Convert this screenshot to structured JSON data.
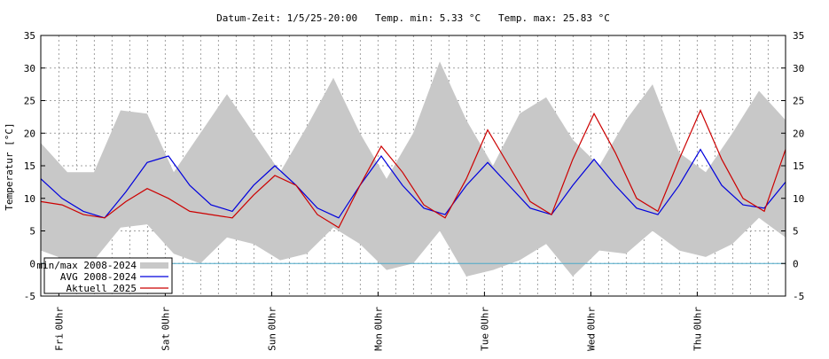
{
  "header": {
    "title": "Datum-Zeit: 1/5/25-20:00   Temp. min: 5.33 °C   Temp. max: 25.83 °C"
  },
  "chart_data": {
    "type": "line",
    "title": "Datum-Zeit: 1/5/25-20:00   Temp. min: 5.33 °C   Temp. max: 25.83 °C",
    "ylabel": "Temperatur [°C]",
    "xlabel": "",
    "xlim": [
      0,
      7
    ],
    "ylim": [
      -5,
      35
    ],
    "y_ticks": [
      -5,
      0,
      5,
      10,
      15,
      20,
      25,
      30,
      35
    ],
    "x_ticks": [
      {
        "x": 0.17,
        "time": "0Uhr",
        "day": "Fri"
      },
      {
        "x": 1.17,
        "time": "0Uhr",
        "day": "Sat"
      },
      {
        "x": 2.17,
        "time": "0Uhr",
        "day": "Sun"
      },
      {
        "x": 3.17,
        "time": "0Uhr",
        "day": "Mon"
      },
      {
        "x": 4.17,
        "time": "0Uhr",
        "day": "Tue"
      },
      {
        "x": 5.17,
        "time": "0Uhr",
        "day": "Wed"
      },
      {
        "x": 6.17,
        "time": "0Uhr",
        "day": "Thu"
      }
    ],
    "grid": true,
    "legend_position": "bottom-left",
    "zero_line_color": "#4aa8c8",
    "series": [
      {
        "name": "min/max 2008-2024",
        "kind": "band",
        "color": "#c8c8c8",
        "x": [
          0,
          0.25,
          0.5,
          0.75,
          1,
          1.25,
          1.5,
          1.75,
          2,
          2.25,
          2.5,
          2.75,
          3,
          3.25,
          3.5,
          3.75,
          4,
          4.25,
          4.5,
          4.75,
          5,
          5.25,
          5.5,
          5.75,
          6,
          6.25,
          6.5,
          6.75,
          7
        ],
        "upper": [
          18.5,
          14,
          14,
          23.5,
          23,
          14,
          20,
          26,
          20,
          14,
          21,
          28.5,
          20,
          13,
          20,
          31,
          22,
          15,
          23,
          25.5,
          19,
          15,
          22,
          27.5,
          17,
          14,
          20,
          26.5,
          22
        ],
        "lower": [
          2,
          0.5,
          0.5,
          5.5,
          6,
          1.5,
          0,
          4,
          3,
          0.5,
          1.5,
          5.5,
          3,
          -1,
          0,
          5,
          -2,
          -1,
          0.5,
          3,
          -2,
          2,
          1.5,
          5,
          2,
          1,
          3,
          7,
          4
        ]
      },
      {
        "name": "AVG 2008-2024",
        "kind": "line",
        "color": "#0000dd",
        "x": [
          0,
          0.2,
          0.4,
          0.6,
          0.8,
          1,
          1.2,
          1.4,
          1.6,
          1.8,
          2,
          2.2,
          2.4,
          2.6,
          2.8,
          3,
          3.2,
          3.4,
          3.6,
          3.8,
          4,
          4.2,
          4.4,
          4.6,
          4.8,
          5,
          5.2,
          5.4,
          5.6,
          5.8,
          6,
          6.2,
          6.4,
          6.6,
          6.8,
          7
        ],
        "y": [
          13,
          10,
          8,
          7,
          11,
          15.5,
          16.5,
          12,
          9,
          8,
          12,
          15,
          12,
          8.5,
          7,
          12,
          16.5,
          12,
          8.5,
          7.5,
          12,
          15.5,
          12,
          8.5,
          7.5,
          12,
          16,
          12,
          8.5,
          7.5,
          12,
          17.5,
          12,
          9,
          8.5,
          12.5
        ]
      },
      {
        "name": "Aktuell 2025",
        "kind": "line",
        "color": "#cc0000",
        "x": [
          0,
          0.2,
          0.4,
          0.6,
          0.8,
          1,
          1.2,
          1.4,
          1.6,
          1.8,
          2,
          2.2,
          2.4,
          2.6,
          2.8,
          3,
          3.2,
          3.4,
          3.6,
          3.8,
          4,
          4.2,
          4.4,
          4.6,
          4.8,
          5,
          5.2,
          5.4,
          5.6,
          5.8,
          6,
          6.2,
          6.4,
          6.6,
          6.8,
          7
        ],
        "y": [
          9.5,
          9,
          7.5,
          7,
          9.5,
          11.5,
          10,
          8,
          7.5,
          7,
          10.5,
          13.5,
          12,
          7.5,
          5.5,
          12,
          18,
          14,
          9,
          7,
          13,
          20.5,
          15,
          9.5,
          7.5,
          16,
          23,
          17,
          10,
          8,
          16,
          23.5,
          16,
          10,
          8,
          17.5
        ]
      }
    ]
  }
}
